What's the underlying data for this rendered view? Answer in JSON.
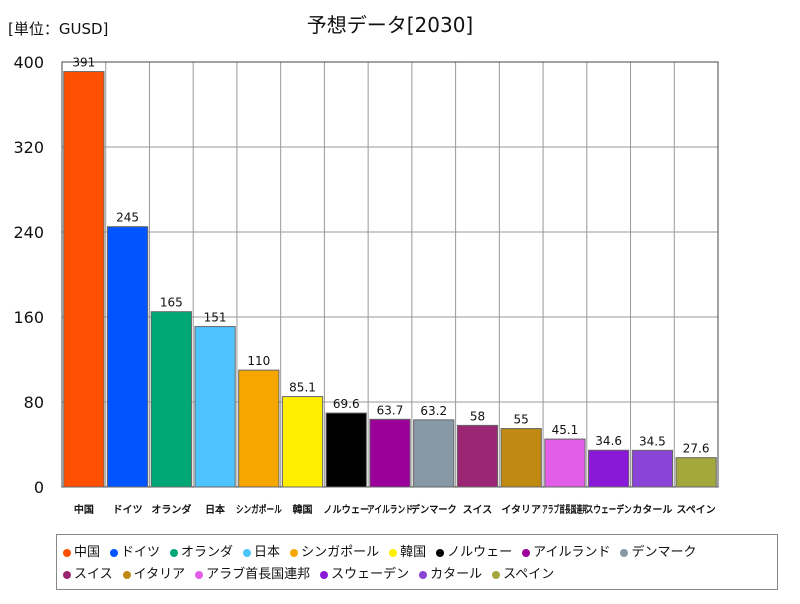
{
  "chart_data": {
    "type": "bar",
    "title": "予想データ[2030]",
    "unit_label": "[単位：GUSD]",
    "ylim": [
      0,
      400
    ],
    "yticks": [
      0,
      80,
      160,
      240,
      320,
      400
    ],
    "grid": true,
    "legend_position": "bottom",
    "categories": [
      "中国",
      "ドイツ",
      "オランダ",
      "日本",
      "シンガポール",
      "韓国",
      "ノルウェー",
      "アイルランド",
      "デンマーク",
      "スイス",
      "イタリア",
      "アラブ首長国連邦",
      "スウェーデン",
      "カタール",
      "スペイン"
    ],
    "values": [
      391,
      245,
      165,
      151,
      110,
      85.1,
      69.6,
      63.7,
      63.2,
      58,
      55,
      45.1,
      34.6,
      34.5,
      27.6
    ],
    "value_labels": [
      "391",
      "245",
      "165",
      "151",
      "110",
      "85.1",
      "69.6",
      "63.7",
      "63.2",
      "58",
      "55",
      "45.1",
      "34.6",
      "34.5",
      "27.6"
    ],
    "colors": [
      "#ff4f00",
      "#0055ff",
      "#00a878",
      "#4dc3ff",
      "#f5a700",
      "#ffee00",
      "#000000",
      "#9b009b",
      "#8899a6",
      "#9b2774",
      "#c08a12",
      "#e35ee8",
      "#8a18d8",
      "#8a44d6",
      "#a3a83c"
    ],
    "legend_rows": [
      [
        "中国",
        "ドイツ",
        "オランダ",
        "日本",
        "シンガポール",
        "韓国",
        "ノルウェー",
        "アイルランド",
        "デンマーク"
      ],
      [
        "スイス",
        "イタリア",
        "アラブ首長国連邦",
        "スウェーデン",
        "カタール",
        "スペイン"
      ]
    ]
  }
}
